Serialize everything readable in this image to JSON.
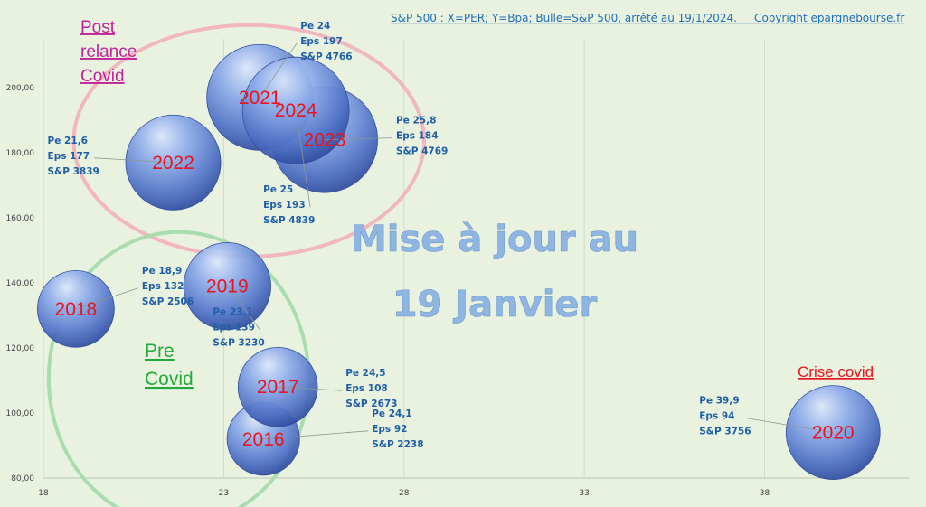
{
  "header": {
    "text": "S&P 500 : X=PER; Y=Bpa; Bulle=S&P 500, arrêté au 19/1/2024.     Copyright epargnebourse.fr"
  },
  "overlay": {
    "line1": "Mise à jour au",
    "line2": "19 Janvier"
  },
  "groups": [
    {
      "lines": [
        "Post",
        "relance",
        "Covid"
      ],
      "color": "#c0239a"
    },
    {
      "lines": [
        "Pre",
        "Covid"
      ],
      "color": "#22aa3a"
    },
    {
      "lines": [
        "Crise covid"
      ],
      "color": "#e8141e"
    }
  ],
  "colors": {
    "bubble": "#5b7fd1",
    "year_text": "#e8141e",
    "info_text": "#1f5fa8",
    "post_ring": "#f2b6be",
    "pre_ring": "#a9dcae",
    "background": "#e8f2df"
  },
  "chart_data": {
    "type": "scatter",
    "title": "S&P 500 : X=PER; Y=Bpa; Bulle=S&P 500, arrêté au 19/1/2024.",
    "xlabel": "",
    "ylabel": "",
    "xlim": [
      18,
      42
    ],
    "ylim": [
      80,
      215
    ],
    "x_ticks": [
      "18",
      "23",
      "28",
      "33",
      "38"
    ],
    "y_ticks": [
      "80,00",
      "100,00",
      "120,00",
      "140,00",
      "160,00",
      "180,00",
      "200,00"
    ],
    "grid": "vertical",
    "points": [
      {
        "year": "2016",
        "x": 24.1,
        "y": 92,
        "size": 2238,
        "info": [
          "Pe  24,1",
          "Eps  92",
          "S&P  2238"
        ]
      },
      {
        "year": "2017",
        "x": 24.5,
        "y": 108,
        "size": 2673,
        "info": [
          "Pe  24,5",
          "Eps  108",
          "S&P  2673"
        ]
      },
      {
        "year": "2018",
        "x": 18.9,
        "y": 132,
        "size": 2506,
        "info": [
          "Pe  18,9",
          "Eps  132",
          "S&P  2506"
        ]
      },
      {
        "year": "2019",
        "x": 23.1,
        "y": 139,
        "size": 3230,
        "info": [
          "Pe  23,1",
          "Eps  139",
          "S&P  3230"
        ]
      },
      {
        "year": "2020",
        "x": 39.9,
        "y": 94,
        "size": 3756,
        "info": [
          "Pe  39,9",
          "Eps  94",
          "S&P  3756"
        ]
      },
      {
        "year": "2021",
        "x": 24,
        "y": 197,
        "size": 4766,
        "info": [
          "Pe  24",
          "Eps  197",
          "S&P  4766"
        ]
      },
      {
        "year": "2022",
        "x": 21.6,
        "y": 177,
        "size": 3839,
        "info": [
          "Pe  21,6",
          "Eps  177",
          "S&P  3839"
        ]
      },
      {
        "year": "2023",
        "x": 25.8,
        "y": 184,
        "size": 4769,
        "info": [
          "Pe  25,8",
          "Eps  184",
          "S&P  4769"
        ]
      },
      {
        "year": "2024",
        "x": 25,
        "y": 193,
        "size": 4839,
        "info": [
          "Pe  25",
          "Eps  193",
          "S&P  4839"
        ]
      }
    ]
  }
}
